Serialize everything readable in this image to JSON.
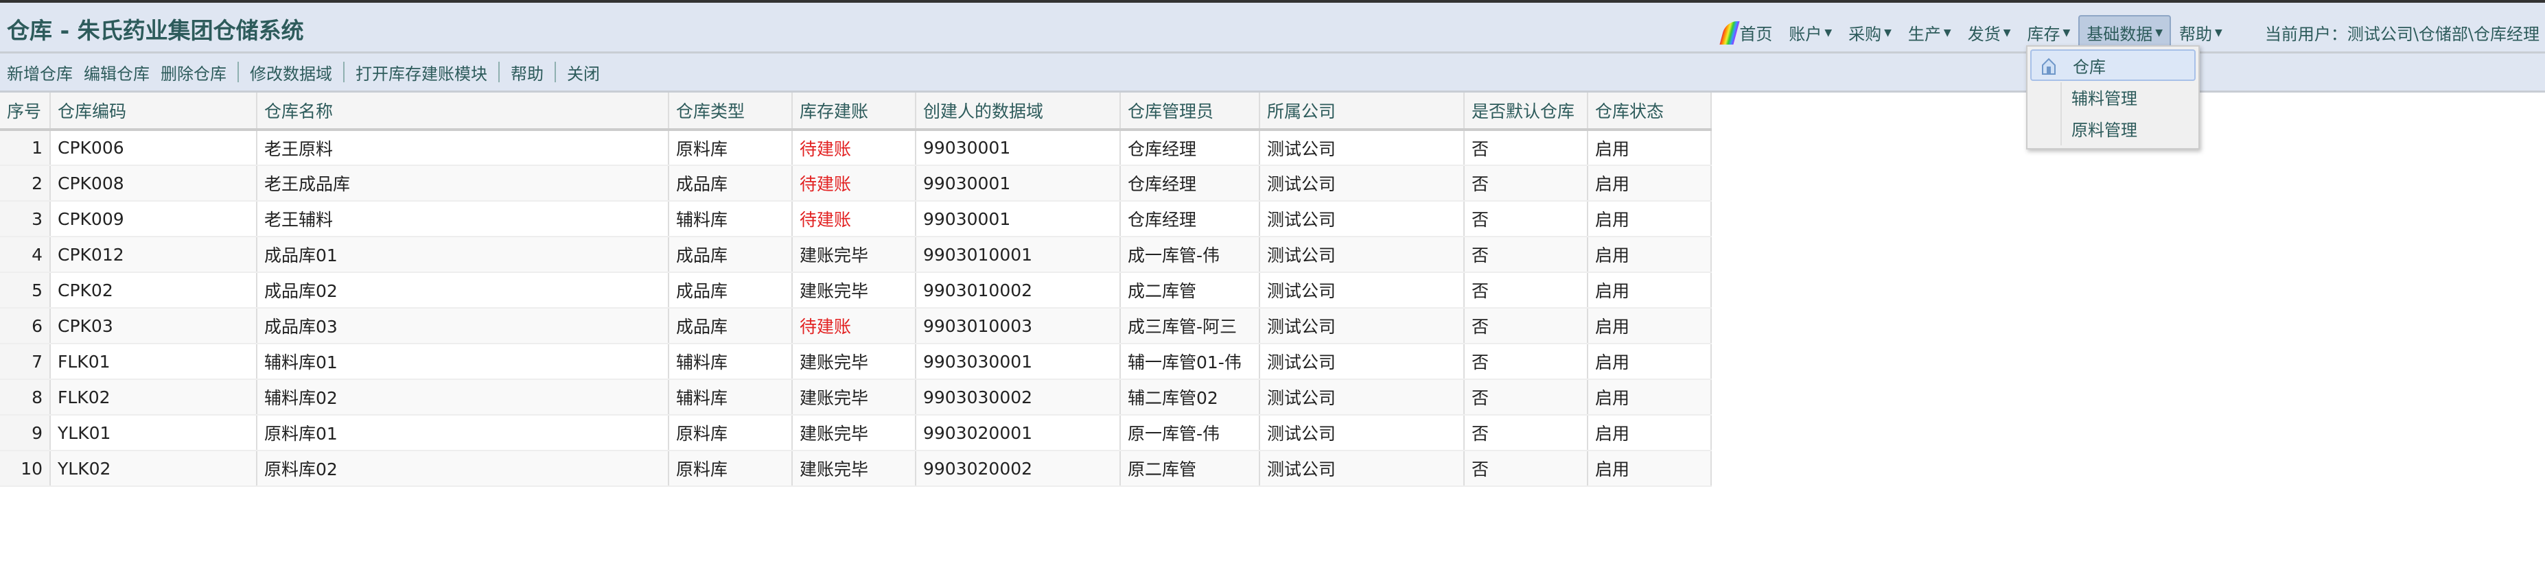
{
  "header": {
    "title": "仓库 - 朱氏药业集团仓储系统",
    "menu": [
      {
        "label": "首页",
        "icon": "rainbow-icon"
      },
      {
        "label": "账户"
      },
      {
        "label": "采购"
      },
      {
        "label": "生产"
      },
      {
        "label": "发货"
      },
      {
        "label": "库存"
      },
      {
        "label": "基础数据",
        "active": true
      },
      {
        "label": "帮助"
      }
    ],
    "current_user": "当前用户：测试公司\\仓储部\\仓库经理"
  },
  "toolbar": [
    "新增仓库",
    "编辑仓库",
    "删除仓库",
    "修改数据域",
    "打开库存建账模块",
    "帮助",
    "关闭"
  ],
  "dropdown": {
    "items": [
      "仓库",
      "辅料管理",
      "原料管理"
    ],
    "highlight_color": "#dce7f7"
  },
  "table": {
    "columns": [
      "序号",
      "仓库编码",
      "仓库名称",
      "仓库类型",
      "库存建账",
      "创建人的数据域",
      "仓库管理员",
      "所属公司",
      "是否默认仓库",
      "仓库状态"
    ],
    "rows": [
      [
        "1",
        "CPK006",
        "老王原料",
        "原料库",
        "待建账",
        "99030001",
        "仓库经理",
        "测试公司",
        "否",
        "启用"
      ],
      [
        "2",
        "CPK008",
        "老王成品库",
        "成品库",
        "待建账",
        "99030001",
        "仓库经理",
        "测试公司",
        "否",
        "启用"
      ],
      [
        "3",
        "CPK009",
        "老王辅料",
        "辅料库",
        "待建账",
        "99030001",
        "仓库经理",
        "测试公司",
        "否",
        "启用"
      ],
      [
        "4",
        "CPK012",
        "成品库01",
        "成品库",
        "建账完毕",
        "9903010001",
        "成一库管-伟",
        "测试公司",
        "否",
        "启用"
      ],
      [
        "5",
        "CPK02",
        "成品库02",
        "成品库",
        "建账完毕",
        "9903010002",
        "成二库管",
        "测试公司",
        "否",
        "启用"
      ],
      [
        "6",
        "CPK03",
        "成品库03",
        "成品库",
        "待建账",
        "9903010003",
        "成三库管-阿三",
        "测试公司",
        "否",
        "启用"
      ],
      [
        "7",
        "FLK01",
        "辅料库01",
        "辅料库",
        "建账完毕",
        "9903030001",
        "辅一库管01-伟",
        "测试公司",
        "否",
        "启用"
      ],
      [
        "8",
        "FLK02",
        "辅料库02",
        "辅料库",
        "建账完毕",
        "9903030002",
        "辅二库管02",
        "测试公司",
        "否",
        "启用"
      ],
      [
        "9",
        "YLK01",
        "原料库01",
        "原料库",
        "建账完毕",
        "9903020001",
        "原一库管-伟",
        "测试公司",
        "否",
        "启用"
      ],
      [
        "10",
        "YLK02",
        "原料库02",
        "原料库",
        "建账完毕",
        "9903020002",
        "原二库管",
        "测试公司",
        "否",
        "启用"
      ]
    ],
    "pending_color": "#e22222"
  }
}
